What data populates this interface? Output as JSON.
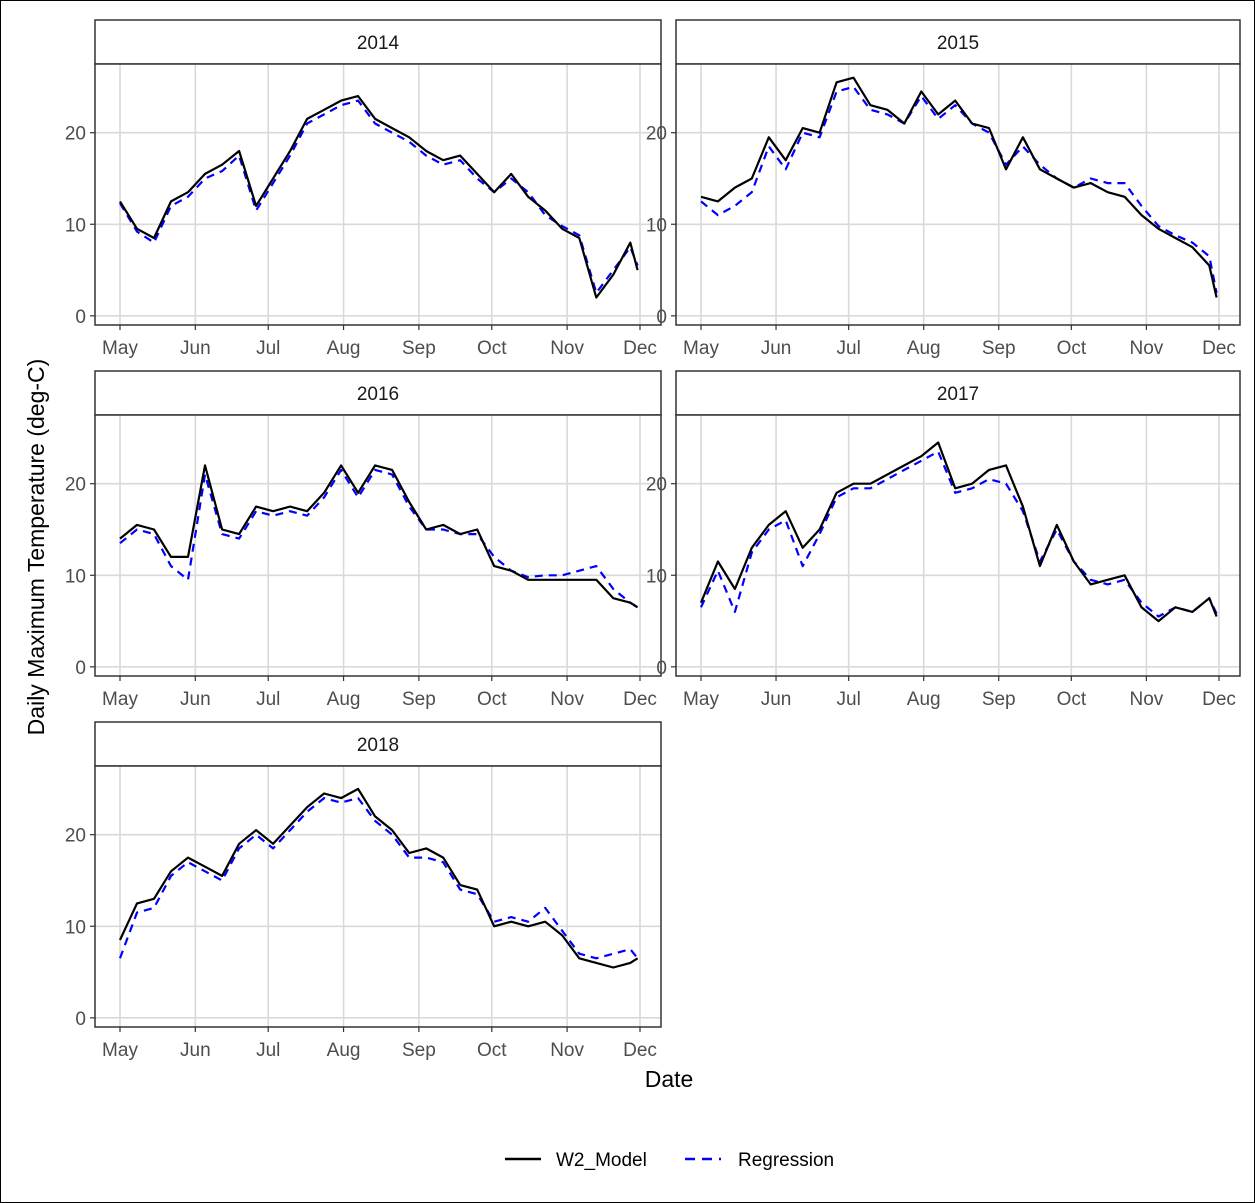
{
  "chart_data": {
    "type": "line",
    "facet_by": "year",
    "xlabel": "Date",
    "ylabel": "Daily Maximum Temperature (deg-C)",
    "x_ticks": [
      "May",
      "Jun",
      "Jul",
      "Aug",
      "Sep",
      "Oct",
      "Nov",
      "Dec"
    ],
    "y_ticks": [
      0,
      10,
      20
    ],
    "ylim": [
      -1,
      27.5
    ],
    "grid": true,
    "legend": {
      "position": "bottom",
      "entries": [
        "W2_Model",
        "Regression"
      ]
    },
    "colors": {
      "W2_Model": "#000000",
      "Regression": "#0000ff",
      "grid": "#d9d9d9",
      "strip_fill": "#ffffff"
    },
    "panels": [
      {
        "label": "2014",
        "x": [
          "2014-05-01",
          "2014-05-08",
          "2014-05-15",
          "2014-05-22",
          "2014-05-29",
          "2014-06-05",
          "2014-06-12",
          "2014-06-19",
          "2014-06-26",
          "2014-07-03",
          "2014-07-10",
          "2014-07-17",
          "2014-07-24",
          "2014-07-31",
          "2014-08-07",
          "2014-08-14",
          "2014-08-21",
          "2014-08-28",
          "2014-09-04",
          "2014-09-11",
          "2014-09-18",
          "2014-09-25",
          "2014-10-02",
          "2014-10-09",
          "2014-10-16",
          "2014-10-23",
          "2014-10-30",
          "2014-11-06",
          "2014-11-13",
          "2014-11-20",
          "2014-11-27",
          "2014-11-30"
        ],
        "series": [
          {
            "name": "W2_Model",
            "values": [
              12.5,
              9.5,
              8.5,
              12.5,
              13.5,
              15.5,
              16.5,
              18.0,
              12.0,
              15.0,
              18.0,
              21.5,
              22.5,
              23.5,
              24.0,
              21.5,
              20.5,
              19.5,
              18.0,
              17.0,
              17.5,
              15.5,
              13.5,
              15.5,
              13.0,
              11.5,
              9.5,
              8.5,
              2.0,
              4.5,
              8.0,
              5.0
            ]
          },
          {
            "name": "Regression",
            "values": [
              12.3,
              9.2,
              8.0,
              12.0,
              13.0,
              15.0,
              15.8,
              17.5,
              11.5,
              14.5,
              17.5,
              21.0,
              22.0,
              23.0,
              23.5,
              21.0,
              20.0,
              19.0,
              17.5,
              16.5,
              17.0,
              15.0,
              13.5,
              15.0,
              13.5,
              11.0,
              9.8,
              8.8,
              2.5,
              5.0,
              7.5,
              5.5
            ]
          }
        ]
      },
      {
        "label": "2015",
        "x": [
          "2015-05-01",
          "2015-05-08",
          "2015-05-15",
          "2015-05-22",
          "2015-05-29",
          "2015-06-05",
          "2015-06-12",
          "2015-06-19",
          "2015-06-26",
          "2015-07-03",
          "2015-07-10",
          "2015-07-17",
          "2015-07-24",
          "2015-07-31",
          "2015-08-07",
          "2015-08-14",
          "2015-08-21",
          "2015-08-28",
          "2015-09-04",
          "2015-09-11",
          "2015-09-18",
          "2015-09-25",
          "2015-10-02",
          "2015-10-09",
          "2015-10-16",
          "2015-10-23",
          "2015-10-30",
          "2015-11-06",
          "2015-11-13",
          "2015-11-20",
          "2015-11-27",
          "2015-11-30"
        ],
        "series": [
          {
            "name": "W2_Model",
            "values": [
              13.0,
              12.5,
              14.0,
              15.0,
              19.5,
              17.0,
              20.5,
              20.0,
              25.5,
              26.0,
              23.0,
              22.5,
              21.0,
              24.5,
              22.0,
              23.5,
              21.0,
              20.5,
              16.0,
              19.5,
              16.0,
              15.0,
              14.0,
              14.5,
              13.5,
              13.0,
              11.0,
              9.5,
              8.5,
              7.5,
              5.5,
              2.0
            ]
          },
          {
            "name": "Regression",
            "values": [
              12.5,
              11.0,
              12.0,
              13.5,
              18.5,
              16.0,
              20.0,
              19.5,
              24.5,
              25.0,
              22.5,
              22.0,
              21.0,
              24.0,
              21.5,
              23.0,
              21.0,
              20.0,
              16.5,
              18.5,
              16.5,
              15.0,
              14.0,
              15.0,
              14.5,
              14.5,
              12.0,
              9.8,
              8.8,
              8.0,
              6.5,
              2.5
            ]
          }
        ]
      },
      {
        "label": "2016",
        "x": [
          "2016-05-01",
          "2016-05-08",
          "2016-05-15",
          "2016-05-22",
          "2016-05-29",
          "2016-06-05",
          "2016-06-12",
          "2016-06-19",
          "2016-06-26",
          "2016-07-03",
          "2016-07-10",
          "2016-07-17",
          "2016-07-24",
          "2016-07-31",
          "2016-08-07",
          "2016-08-14",
          "2016-08-21",
          "2016-08-28",
          "2016-09-04",
          "2016-09-11",
          "2016-09-18",
          "2016-09-25",
          "2016-10-02",
          "2016-10-09",
          "2016-10-16",
          "2016-10-23",
          "2016-10-30",
          "2016-11-06",
          "2016-11-13",
          "2016-11-20",
          "2016-11-27",
          "2016-11-30"
        ],
        "series": [
          {
            "name": "W2_Model",
            "values": [
              14.0,
              15.5,
              15.0,
              12.0,
              12.0,
              22.0,
              15.0,
              14.5,
              17.5,
              17.0,
              17.5,
              17.0,
              19.0,
              22.0,
              19.0,
              22.0,
              21.5,
              18.0,
              15.0,
              15.5,
              14.5,
              15.0,
              11.0,
              10.5,
              9.5,
              9.5,
              9.5,
              9.5,
              9.5,
              7.5,
              7.0,
              6.5
            ]
          },
          {
            "name": "Regression",
            "values": [
              13.5,
              15.0,
              14.5,
              11.0,
              9.5,
              21.0,
              14.5,
              14.0,
              17.0,
              16.5,
              17.0,
              16.5,
              18.5,
              21.5,
              18.5,
              21.5,
              21.0,
              17.5,
              15.0,
              15.0,
              14.5,
              14.5,
              12.0,
              10.5,
              9.8,
              10.0,
              10.0,
              10.5,
              11.0,
              8.5,
              7.0,
              6.5
            ]
          }
        ]
      },
      {
        "label": "2017",
        "x": [
          "2017-05-01",
          "2017-05-08",
          "2017-05-15",
          "2017-05-22",
          "2017-05-29",
          "2017-06-05",
          "2017-06-12",
          "2017-06-19",
          "2017-06-26",
          "2017-07-03",
          "2017-07-10",
          "2017-07-17",
          "2017-07-24",
          "2017-07-31",
          "2017-08-07",
          "2017-08-14",
          "2017-08-21",
          "2017-08-28",
          "2017-09-04",
          "2017-09-11",
          "2017-09-18",
          "2017-09-25",
          "2017-10-02",
          "2017-10-09",
          "2017-10-16",
          "2017-10-23",
          "2017-10-30",
          "2017-11-06",
          "2017-11-13",
          "2017-11-20",
          "2017-11-27",
          "2017-11-30"
        ],
        "series": [
          {
            "name": "W2_Model",
            "values": [
              7.0,
              11.5,
              8.5,
              13.0,
              15.5,
              17.0,
              13.0,
              15.0,
              19.0,
              20.0,
              20.0,
              21.0,
              22.0,
              23.0,
              24.5,
              19.5,
              20.0,
              21.5,
              22.0,
              17.5,
              11.0,
              15.5,
              11.5,
              9.0,
              9.5,
              10.0,
              6.5,
              5.0,
              6.5,
              6.0,
              7.5,
              5.5
            ]
          },
          {
            "name": "Regression",
            "values": [
              6.5,
              10.5,
              6.0,
              12.5,
              15.0,
              16.0,
              11.0,
              14.5,
              18.5,
              19.5,
              19.5,
              20.5,
              21.5,
              22.5,
              23.5,
              19.0,
              19.5,
              20.5,
              20.0,
              17.0,
              11.5,
              15.0,
              11.5,
              9.5,
              9.0,
              9.5,
              7.0,
              5.5,
              6.5,
              6.0,
              7.5,
              5.8
            ]
          }
        ]
      },
      {
        "label": "2018",
        "x": [
          "2018-05-01",
          "2018-05-08",
          "2018-05-15",
          "2018-05-22",
          "2018-05-29",
          "2018-06-05",
          "2018-06-12",
          "2018-06-19",
          "2018-06-26",
          "2018-07-03",
          "2018-07-10",
          "2018-07-17",
          "2018-07-24",
          "2018-07-31",
          "2018-08-07",
          "2018-08-14",
          "2018-08-21",
          "2018-08-28",
          "2018-09-04",
          "2018-09-11",
          "2018-09-18",
          "2018-09-25",
          "2018-10-02",
          "2018-10-09",
          "2018-10-16",
          "2018-10-23",
          "2018-10-30",
          "2018-11-06",
          "2018-11-13",
          "2018-11-20",
          "2018-11-27",
          "2018-11-30"
        ],
        "series": [
          {
            "name": "W2_Model",
            "values": [
              8.5,
              12.5,
              13.0,
              16.0,
              17.5,
              16.5,
              15.5,
              19.0,
              20.5,
              19.0,
              21.0,
              23.0,
              24.5,
              24.0,
              25.0,
              22.0,
              20.5,
              18.0,
              18.5,
              17.5,
              14.5,
              14.0,
              10.0,
              10.5,
              10.0,
              10.5,
              9.0,
              6.5,
              6.0,
              5.5,
              6.0,
              6.5
            ]
          },
          {
            "name": "Regression",
            "values": [
              6.5,
              11.5,
              12.0,
              15.5,
              17.0,
              16.0,
              15.0,
              18.5,
              20.0,
              18.5,
              20.5,
              22.5,
              24.0,
              23.5,
              24.0,
              21.5,
              20.0,
              17.5,
              17.5,
              17.0,
              14.0,
              13.5,
              10.5,
              11.0,
              10.5,
              12.0,
              9.5,
              7.0,
              6.5,
              7.0,
              7.5,
              6.5
            ]
          }
        ]
      }
    ]
  }
}
